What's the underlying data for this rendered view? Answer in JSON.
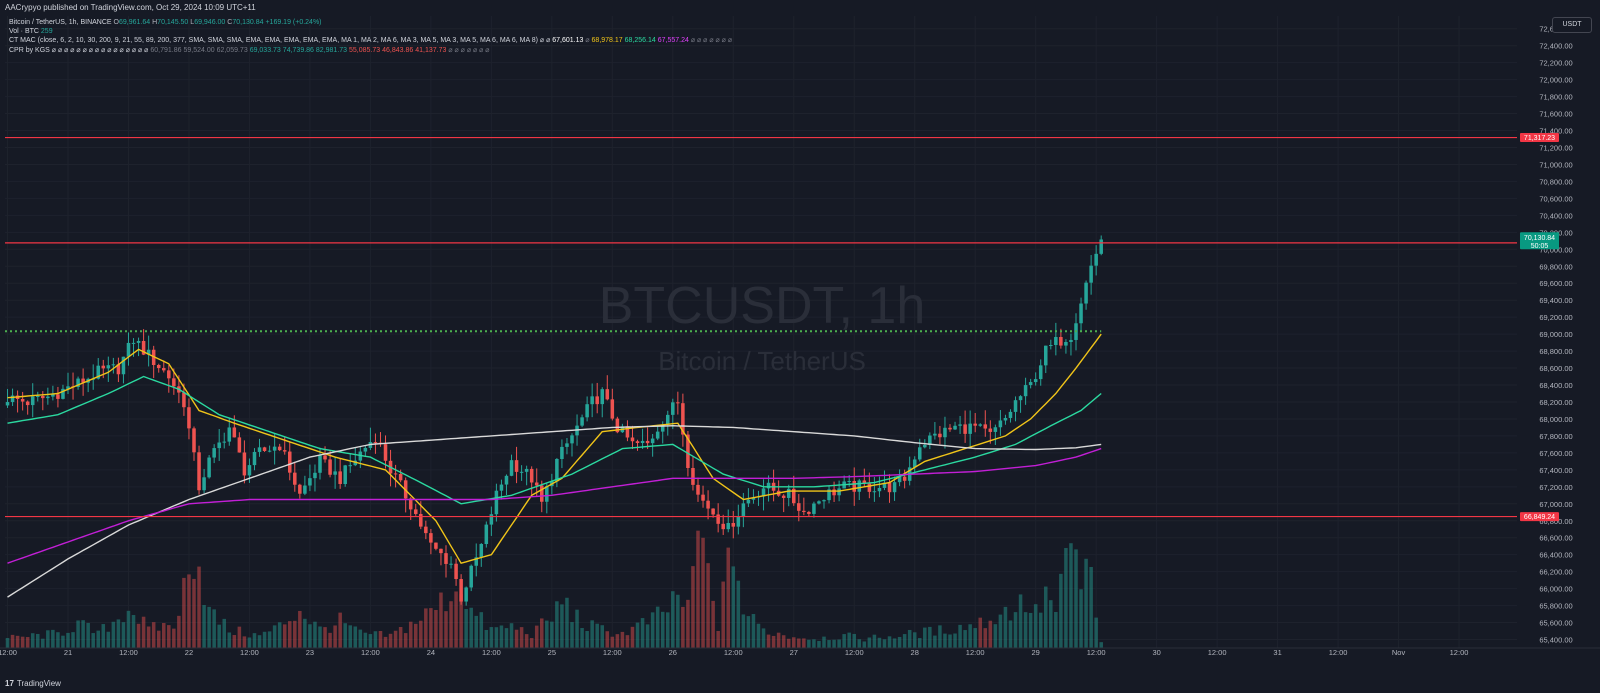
{
  "header": {
    "published": "AACrypyo published on TradingView.com, Oct 29, 2024 10:09 UTC+11"
  },
  "legend": {
    "symbol": "Bitcoin / TetherUS, 1h, BINANCE",
    "open_label": "O",
    "open": "69,961.64",
    "high_label": "H",
    "high": "70,145.50",
    "low_label": "L",
    "low": "69,946.00",
    "close_label": "C",
    "close": "70,130.84",
    "change": "+169.19 (+0.24%)",
    "vol_label": "Vol · BTC",
    "vol": "259",
    "ma_label": "CT MAC (close, 6, 2, 10, 30, 200, 9, 21, 55, 89, 200, 377, SMA, SMA, SMA, EMA, EMA, EMA, EMA, EMA, MA 1, MA 2, MA 6, MA 3, MA 5, MA 3, MA 5, MA 6, MA 6, MA 8) ⌀ ⌀",
    "ma_v1": "67,601.13",
    "ma_v2": "68,978.17",
    "ma_v3": "68,256.14",
    "ma_v4": "67,557.24",
    "ma_tail": "⌀ ⌀ ⌀ ⌀ ⌀ ⌀ ⌀",
    "cpr_label": "CPR by KGS ⌀ ⌀ ⌀ ⌀ ⌀ ⌀ ⌀ ⌀ ⌀ ⌀ ⌀ ⌀ ⌀ ⌀ ⌀ ⌀",
    "cpr_g1": "60,791.86",
    "cpr_g2": "59,524.00",
    "cpr_g3": "62,059.73",
    "cpr_u1": "69,033.73",
    "cpr_u2": "74,739.86",
    "cpr_u3": "82,981.73",
    "cpr_d1": "55,085.73",
    "cpr_d2": "46,843.86",
    "cpr_d3": "41,137.73",
    "cpr_tail": "⌀ ⌀ ⌀ ⌀ ⌀ ⌀ ⌀"
  },
  "currency": "USDT",
  "watermark": {
    "symbol": "BTCUSDT, 1h",
    "name": "Bitcoin / TetherUS"
  },
  "footer": {
    "logo": "17",
    "brand": "TradingView"
  },
  "colors": {
    "background": "#161a25",
    "up": "#26a69a",
    "down": "#ef5350",
    "ma_yellow": "#f0c419",
    "ma_green": "#2bd9a0",
    "ma_white": "#d9d9d9",
    "ma_purple": "#c21fd6",
    "hline": "#f23645",
    "dotted": "#4caf50"
  },
  "chart_data": {
    "type": "candlestick",
    "title": "BTCUSDT, 1h",
    "subtitle": "Bitcoin / TetherUS",
    "ylim": [
      65300,
      72750
    ],
    "y_ticks": [
      65400,
      65600,
      65800,
      66000,
      66200,
      66400,
      66600,
      66800,
      67000,
      67200,
      67400,
      67600,
      67800,
      68000,
      68200,
      68400,
      68600,
      68800,
      69000,
      69200,
      69400,
      69600,
      69800,
      70000,
      70200,
      70400,
      70600,
      70800,
      71000,
      71200,
      71400,
      71600,
      71800,
      72000,
      72200,
      72400,
      72600
    ],
    "x_ticks": [
      {
        "bar": 0,
        "label": "12:00"
      },
      {
        "bar": 12,
        "label": "21"
      },
      {
        "bar": 24,
        "label": "12:00"
      },
      {
        "bar": 36,
        "label": "22"
      },
      {
        "bar": 48,
        "label": "12:00"
      },
      {
        "bar": 60,
        "label": "23"
      },
      {
        "bar": 72,
        "label": "12:00"
      },
      {
        "bar": 84,
        "label": "24"
      },
      {
        "bar": 96,
        "label": "12:00"
      },
      {
        "bar": 108,
        "label": "25"
      },
      {
        "bar": 120,
        "label": "12:00"
      },
      {
        "bar": 132,
        "label": "26"
      },
      {
        "bar": 144,
        "label": "12:00"
      },
      {
        "bar": 156,
        "label": "27"
      },
      {
        "bar": 168,
        "label": "12:00"
      },
      {
        "bar": 180,
        "label": "28"
      },
      {
        "bar": 192,
        "label": "12:00"
      },
      {
        "bar": 204,
        "label": "29"
      },
      {
        "bar": 216,
        "label": "12:00"
      },
      {
        "bar": 228,
        "label": "30"
      },
      {
        "bar": 240,
        "label": "12:00"
      },
      {
        "bar": 252,
        "label": "31"
      },
      {
        "bar": 264,
        "label": "12:00"
      },
      {
        "bar": 276,
        "label": "Nov"
      },
      {
        "bar": 288,
        "label": "12:00"
      }
    ],
    "total_bars": 300,
    "close_anchors": [
      [
        0,
        68250
      ],
      [
        4,
        68200
      ],
      [
        8,
        68260
      ],
      [
        14,
        68420
      ],
      [
        18,
        68550
      ],
      [
        22,
        68600
      ],
      [
        25,
        68940
      ],
      [
        28,
        68750
      ],
      [
        32,
        68500
      ],
      [
        35,
        68200
      ],
      [
        38,
        67200
      ],
      [
        40,
        67500
      ],
      [
        44,
        67900
      ],
      [
        47,
        67400
      ],
      [
        50,
        67600
      ],
      [
        54,
        67700
      ],
      [
        58,
        67100
      ],
      [
        62,
        67500
      ],
      [
        66,
        67300
      ],
      [
        70,
        67600
      ],
      [
        73,
        67800
      ],
      [
        76,
        67400
      ],
      [
        80,
        67000
      ],
      [
        84,
        66500
      ],
      [
        88,
        66300
      ],
      [
        90,
        65900
      ],
      [
        92,
        66200
      ],
      [
        94,
        66500
      ],
      [
        97,
        67100
      ],
      [
        100,
        67500
      ],
      [
        104,
        67300
      ],
      [
        106,
        67000
      ],
      [
        109,
        67500
      ],
      [
        112,
        67800
      ],
      [
        116,
        68200
      ],
      [
        118,
        68300
      ],
      [
        121,
        67900
      ],
      [
        124,
        67700
      ],
      [
        127,
        67700
      ],
      [
        130,
        68000
      ],
      [
        133,
        68200
      ],
      [
        135,
        67500
      ],
      [
        137,
        67100
      ],
      [
        140,
        66900
      ],
      [
        143,
        66700
      ],
      [
        146,
        67000
      ],
      [
        150,
        67200
      ],
      [
        155,
        67100
      ],
      [
        158,
        66900
      ],
      [
        162,
        67100
      ],
      [
        166,
        67200
      ],
      [
        170,
        67200
      ],
      [
        176,
        67200
      ],
      [
        178,
        67300
      ],
      [
        181,
        67700
      ],
      [
        184,
        67800
      ],
      [
        188,
        67900
      ],
      [
        192,
        67900
      ],
      [
        195,
        67800
      ],
      [
        198,
        68000
      ],
      [
        200,
        68200
      ],
      [
        203,
        68400
      ],
      [
        206,
        68800
      ],
      [
        208,
        68900
      ],
      [
        211,
        69000
      ],
      [
        213,
        69400
      ],
      [
        215,
        69800
      ],
      [
        216,
        69960
      ],
      [
        217,
        70130
      ]
    ],
    "horizontal_levels": [
      {
        "price": 71317.23,
        "label": "71,317.23"
      },
      {
        "price": 70075.99,
        "label": "70,075.99"
      },
      {
        "price": 66849.24,
        "label": "66,849.24"
      }
    ],
    "dotted_level": 69034,
    "price_tags": [
      {
        "label": "70,130.84",
        "sub": "50:05"
      }
    ],
    "ma_series": [
      {
        "color": "#f0c419",
        "anchors": [
          [
            0,
            68250
          ],
          [
            10,
            68300
          ],
          [
            20,
            68550
          ],
          [
            26,
            68820
          ],
          [
            32,
            68650
          ],
          [
            38,
            68100
          ],
          [
            45,
            67950
          ],
          [
            55,
            67750
          ],
          [
            65,
            67550
          ],
          [
            75,
            67400
          ],
          [
            85,
            66800
          ],
          [
            90,
            66300
          ],
          [
            96,
            66400
          ],
          [
            104,
            67100
          ],
          [
            110,
            67300
          ],
          [
            118,
            67850
          ],
          [
            125,
            67900
          ],
          [
            133,
            67950
          ],
          [
            140,
            67300
          ],
          [
            146,
            67050
          ],
          [
            155,
            67150
          ],
          [
            165,
            67150
          ],
          [
            175,
            67250
          ],
          [
            182,
            67500
          ],
          [
            190,
            67650
          ],
          [
            198,
            67800
          ],
          [
            203,
            68000
          ],
          [
            208,
            68300
          ],
          [
            212,
            68600
          ],
          [
            217,
            69000
          ]
        ]
      },
      {
        "color": "#2bd9a0",
        "anchors": [
          [
            0,
            67950
          ],
          [
            10,
            68050
          ],
          [
            20,
            68300
          ],
          [
            27,
            68500
          ],
          [
            34,
            68350
          ],
          [
            42,
            68050
          ],
          [
            52,
            67850
          ],
          [
            62,
            67650
          ],
          [
            72,
            67550
          ],
          [
            82,
            67250
          ],
          [
            90,
            67000
          ],
          [
            100,
            67100
          ],
          [
            112,
            67350
          ],
          [
            122,
            67650
          ],
          [
            132,
            67700
          ],
          [
            142,
            67350
          ],
          [
            150,
            67200
          ],
          [
            160,
            67200
          ],
          [
            172,
            67250
          ],
          [
            182,
            67400
          ],
          [
            192,
            67550
          ],
          [
            200,
            67700
          ],
          [
            208,
            67950
          ],
          [
            213,
            68100
          ],
          [
            217,
            68300
          ]
        ]
      },
      {
        "color": "#d9d9d9",
        "anchors": [
          [
            0,
            65900
          ],
          [
            12,
            66350
          ],
          [
            24,
            66750
          ],
          [
            36,
            67050
          ],
          [
            48,
            67300
          ],
          [
            60,
            67550
          ],
          [
            72,
            67700
          ],
          [
            84,
            67750
          ],
          [
            96,
            67800
          ],
          [
            108,
            67850
          ],
          [
            120,
            67900
          ],
          [
            132,
            67920
          ],
          [
            144,
            67900
          ],
          [
            156,
            67850
          ],
          [
            168,
            67800
          ],
          [
            180,
            67720
          ],
          [
            192,
            67650
          ],
          [
            204,
            67640
          ],
          [
            212,
            67660
          ],
          [
            217,
            67700
          ]
        ]
      },
      {
        "color": "#c21fd6",
        "anchors": [
          [
            0,
            66300
          ],
          [
            12,
            66550
          ],
          [
            24,
            66800
          ],
          [
            36,
            67000
          ],
          [
            48,
            67050
          ],
          [
            60,
            67050
          ],
          [
            72,
            67050
          ],
          [
            84,
            67050
          ],
          [
            96,
            67050
          ],
          [
            108,
            67100
          ],
          [
            120,
            67200
          ],
          [
            132,
            67300
          ],
          [
            144,
            67300
          ],
          [
            156,
            67300
          ],
          [
            168,
            67320
          ],
          [
            180,
            67350
          ],
          [
            192,
            67380
          ],
          [
            204,
            67450
          ],
          [
            212,
            67550
          ],
          [
            217,
            67650
          ]
        ]
      }
    ],
    "volume_anchors": [
      [
        0,
        8
      ],
      [
        10,
        12
      ],
      [
        14,
        20
      ],
      [
        18,
        12
      ],
      [
        22,
        25
      ],
      [
        24,
        35
      ],
      [
        28,
        15
      ],
      [
        34,
        22
      ],
      [
        36,
        85
      ],
      [
        38,
        70
      ],
      [
        40,
        30
      ],
      [
        44,
        15
      ],
      [
        50,
        10
      ],
      [
        54,
        18
      ],
      [
        58,
        32
      ],
      [
        62,
        15
      ],
      [
        66,
        22
      ],
      [
        70,
        12
      ],
      [
        76,
        10
      ],
      [
        80,
        20
      ],
      [
        84,
        30
      ],
      [
        88,
        45
      ],
      [
        90,
        55
      ],
      [
        92,
        30
      ],
      [
        96,
        15
      ],
      [
        100,
        18
      ],
      [
        104,
        12
      ],
      [
        108,
        25
      ],
      [
        110,
        40
      ],
      [
        114,
        20
      ],
      [
        118,
        15
      ],
      [
        122,
        12
      ],
      [
        126,
        20
      ],
      [
        130,
        28
      ],
      [
        133,
        45
      ],
      [
        135,
        30
      ],
      [
        137,
        95
      ],
      [
        139,
        60
      ],
      [
        141,
        20
      ],
      [
        144,
        88
      ],
      [
        146,
        30
      ],
      [
        150,
        15
      ],
      [
        155,
        10
      ],
      [
        160,
        8
      ],
      [
        166,
        10
      ],
      [
        170,
        8
      ],
      [
        176,
        10
      ],
      [
        180,
        12
      ],
      [
        186,
        15
      ],
      [
        190,
        18
      ],
      [
        194,
        22
      ],
      [
        198,
        30
      ],
      [
        202,
        38
      ],
      [
        204,
        28
      ],
      [
        206,
        45
      ],
      [
        208,
        30
      ],
      [
        211,
        85
      ],
      [
        213,
        55
      ],
      [
        215,
        70
      ],
      [
        216,
        20
      ],
      [
        217,
        5
      ]
    ]
  }
}
